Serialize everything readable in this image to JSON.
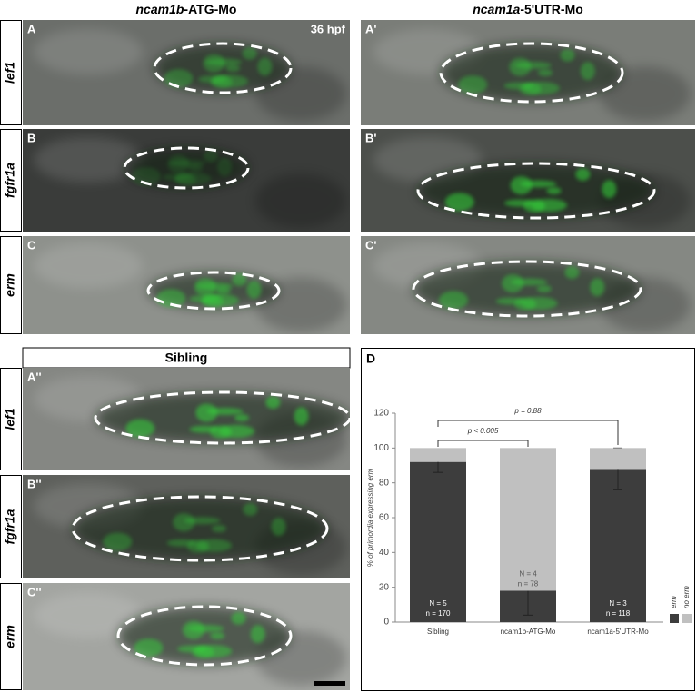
{
  "figure": {
    "top_headers": [
      [
        "ncam1b",
        "-ATG-Mo"
      ],
      [
        "ncam1a",
        "-5'UTR-Mo"
      ]
    ],
    "row_labels": [
      "lef1",
      "fgfr1a",
      "erm"
    ],
    "panel_letters": [
      "A",
      "A'",
      "B",
      "B'",
      "C",
      "C'"
    ],
    "stage": "36 hpf",
    "sibling_title": "Sibling",
    "bottom_row_labels": [
      "lef1",
      "fgfr1a",
      "erm"
    ],
    "bottom_letters": [
      "A''",
      "B''",
      "C''"
    ],
    "panel_d_letter": "D"
  },
  "chart_data": {
    "type": "bar",
    "stacked": true,
    "ylabel": "% of primordia expressing erm",
    "categories": [
      "Sibling",
      "ncam1b-ATG-Mo",
      "ncam1a-5'UTR-Mo"
    ],
    "ylim": [
      0,
      120
    ],
    "yticks": [
      0,
      20,
      40,
      60,
      80,
      100,
      120
    ],
    "series": [
      {
        "name": "erm",
        "color": "#3d3d3d",
        "values": [
          92,
          18,
          88
        ],
        "errors": [
          6,
          14,
          12
        ]
      },
      {
        "name": "no erm",
        "color": "#c0c0c0",
        "values": [
          8,
          82,
          12
        ]
      }
    ],
    "counts": [
      [
        "N = 5",
        "n = 170"
      ],
      [
        "N = 4",
        "n = 78"
      ],
      [
        "N = 3",
        "n = 118"
      ]
    ],
    "comparisons": [
      "p < 0.005",
      "p = 0.88"
    ]
  }
}
